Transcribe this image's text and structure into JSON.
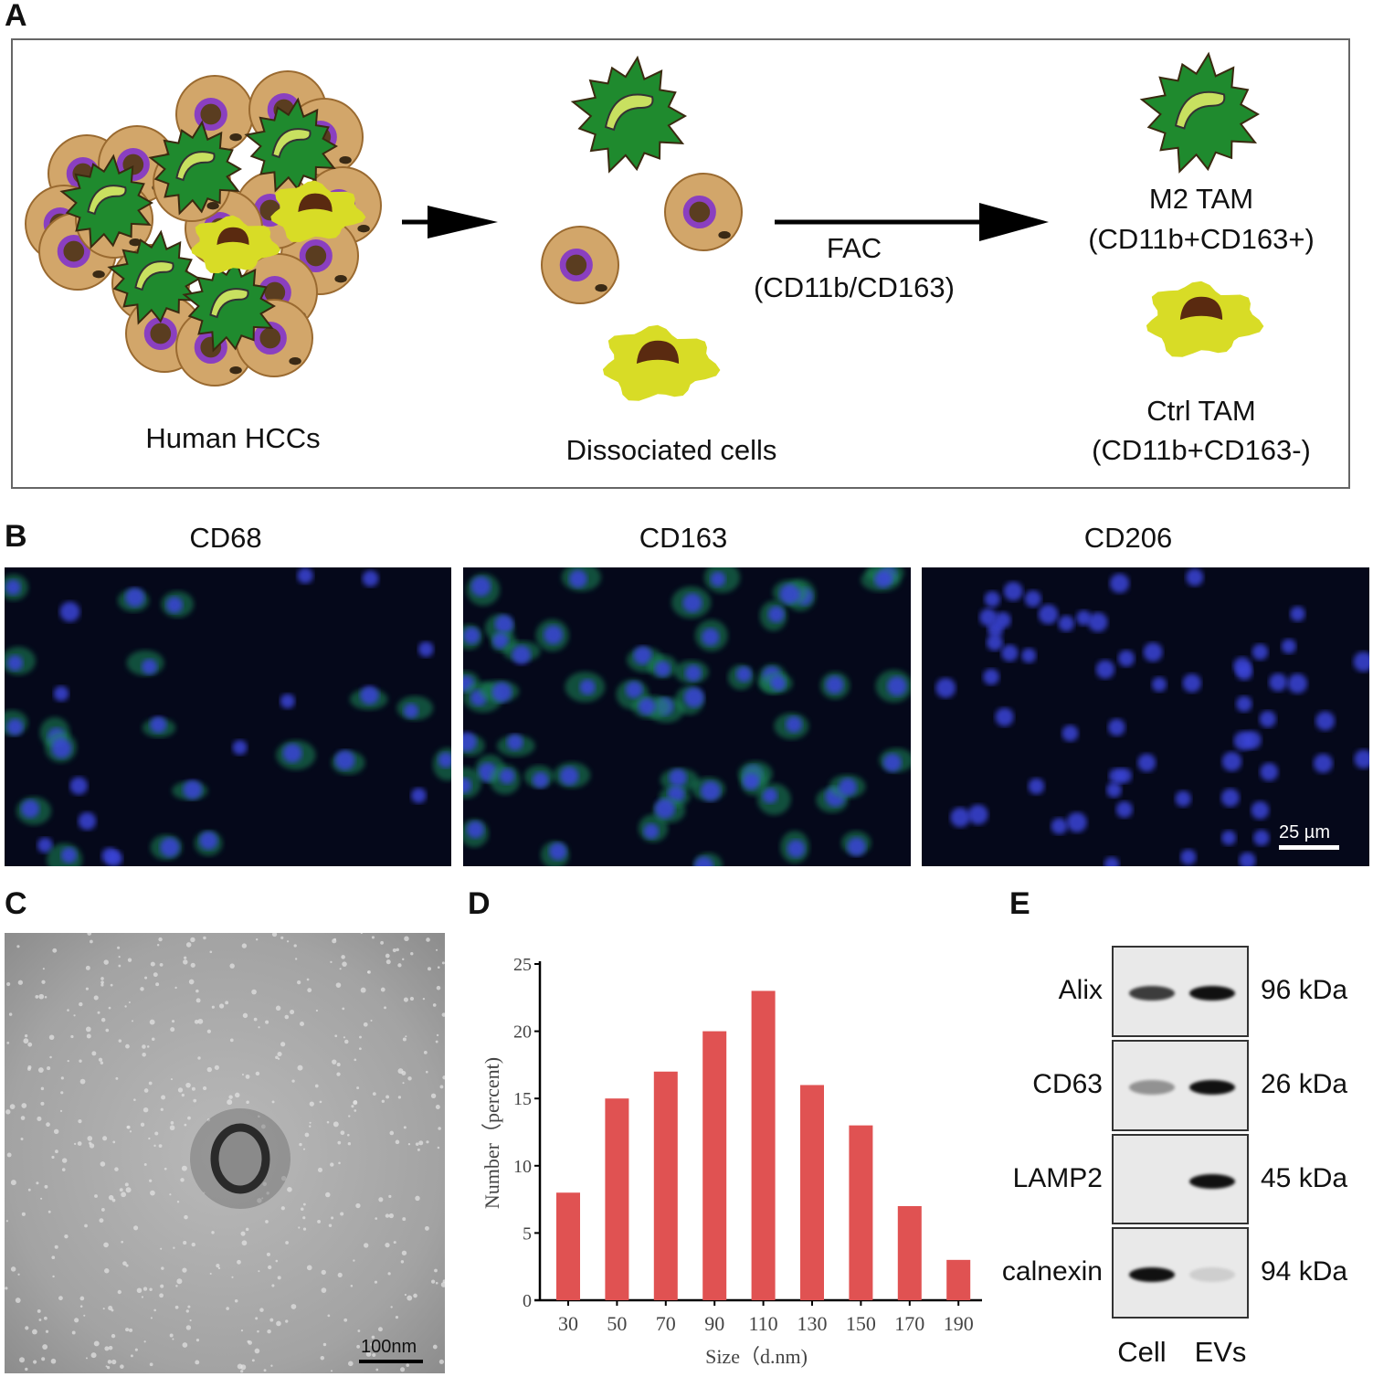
{
  "panels": {
    "A": {
      "label": "A",
      "group1": "Human HCCs",
      "group2": "Dissociated cells",
      "sort_method": "FAC",
      "sort_markers": "(CD11b/CD163)",
      "out1_name": "M2 TAM",
      "out1_markers": "(CD11b+CD163+)",
      "out2_name": "Ctrl TAM",
      "out2_markers": "(CD11b+CD163-)"
    },
    "B": {
      "label": "B",
      "stains": [
        "CD68",
        "CD163",
        "CD206"
      ],
      "scale_bar": "25 µm"
    },
    "C": {
      "label": "C",
      "scale_bar": "100nm"
    },
    "D": {
      "label": "D"
    },
    "E": {
      "label": "E",
      "proteins": [
        "Alix",
        "CD63",
        "LAMP2",
        "calnexin"
      ],
      "weights": [
        "96 kDa",
        "26 kDa",
        "45 kDa",
        "94 kDa"
      ],
      "lanes": [
        "Cell",
        "EVs"
      ]
    }
  },
  "colors": {
    "m2_tam": "#1f8a2e",
    "ctrl_tam": "#d8dc26",
    "tumor_cell": "#d2a66a",
    "bar": "#e05252"
  },
  "chart_data": {
    "type": "bar",
    "categories": [
      "30",
      "50",
      "70",
      "90",
      "110",
      "130",
      "150",
      "170",
      "190"
    ],
    "values": [
      8,
      15,
      17,
      20,
      23,
      16,
      13,
      7,
      3
    ],
    "xlabel": "Size（d.nm)",
    "ylabel": "Number（percent)",
    "ylim": [
      0,
      25
    ],
    "yticks": [
      "0",
      "5",
      "10",
      "15",
      "20",
      "25"
    ],
    "grid": false
  }
}
